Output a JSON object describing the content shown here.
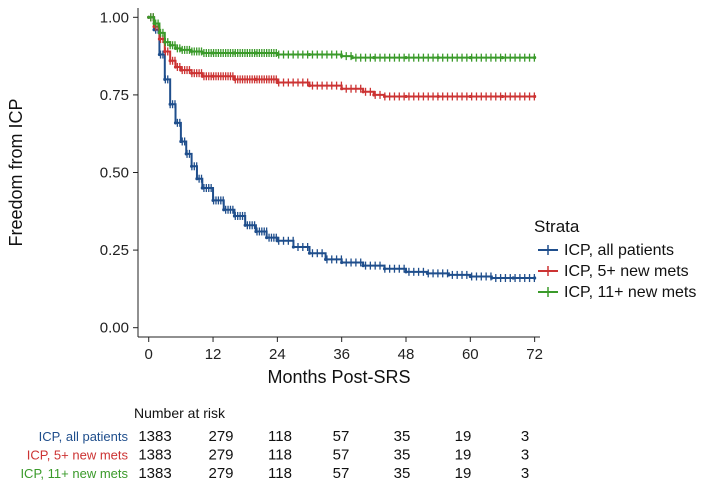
{
  "chart_data": {
    "type": "line",
    "ylabel": "Freedom from ICP",
    "xlabel": "Months Post-SRS",
    "xlim": [
      -2,
      73
    ],
    "ylim": [
      -0.03,
      1.03
    ],
    "xticks": [
      0,
      12,
      24,
      36,
      48,
      60,
      72
    ],
    "yticks": [
      "0.00",
      "0.25",
      "0.50",
      "0.75",
      "1.00"
    ],
    "legend": {
      "title": "Strata",
      "placement": "right"
    },
    "series": [
      {
        "name": "ICP, all patients",
        "color": "#1f4e8c",
        "x": [
          0,
          1,
          2,
          3,
          4,
          5,
          6,
          7,
          8,
          9,
          10,
          12,
          14,
          16,
          18,
          20,
          22,
          24,
          27,
          30,
          33,
          36,
          40,
          44,
          48,
          52,
          56,
          60,
          64,
          68,
          72
        ],
        "y": [
          1.0,
          0.96,
          0.88,
          0.8,
          0.72,
          0.66,
          0.6,
          0.56,
          0.52,
          0.48,
          0.45,
          0.41,
          0.38,
          0.36,
          0.33,
          0.31,
          0.29,
          0.28,
          0.26,
          0.24,
          0.22,
          0.21,
          0.2,
          0.19,
          0.18,
          0.175,
          0.17,
          0.165,
          0.16,
          0.16,
          0.16
        ]
      },
      {
        "name": "ICP, 5+ new mets",
        "color": "#cc3333",
        "x": [
          0,
          1,
          2,
          3,
          4,
          5,
          6,
          8,
          10,
          12,
          16,
          20,
          24,
          30,
          36,
          40,
          42,
          44,
          48,
          54,
          60,
          66,
          72
        ],
        "y": [
          1.0,
          0.97,
          0.93,
          0.89,
          0.86,
          0.84,
          0.83,
          0.82,
          0.81,
          0.81,
          0.8,
          0.8,
          0.79,
          0.78,
          0.77,
          0.76,
          0.75,
          0.745,
          0.745,
          0.745,
          0.745,
          0.745,
          0.745
        ]
      },
      {
        "name": "ICP, 11+ new mets",
        "color": "#3a9a2a",
        "x": [
          0,
          1,
          2,
          3,
          4,
          5,
          6,
          8,
          10,
          12,
          16,
          20,
          24,
          30,
          36,
          38,
          42,
          48,
          54,
          60,
          66,
          72
        ],
        "y": [
          1.0,
          0.98,
          0.95,
          0.92,
          0.91,
          0.9,
          0.895,
          0.89,
          0.885,
          0.885,
          0.885,
          0.885,
          0.88,
          0.88,
          0.875,
          0.87,
          0.87,
          0.87,
          0.87,
          0.87,
          0.87,
          0.87
        ]
      }
    ]
  },
  "risk_table": {
    "title": "Number at risk",
    "rows": [
      {
        "label": "ICP, all patients",
        "color": "#1f4e8c",
        "values": [
          "1383",
          "279",
          "118",
          "57",
          "35",
          "19",
          "3"
        ]
      },
      {
        "label": "ICP, 5+ new mets",
        "color": "#cc3333",
        "values": [
          "1383",
          "279",
          "118",
          "57",
          "35",
          "19",
          "3"
        ]
      },
      {
        "label": "ICP, 11+ new mets",
        "color": "#3a9a2a",
        "values": [
          "1383",
          "279",
          "118",
          "57",
          "35",
          "19",
          "3"
        ]
      }
    ]
  }
}
